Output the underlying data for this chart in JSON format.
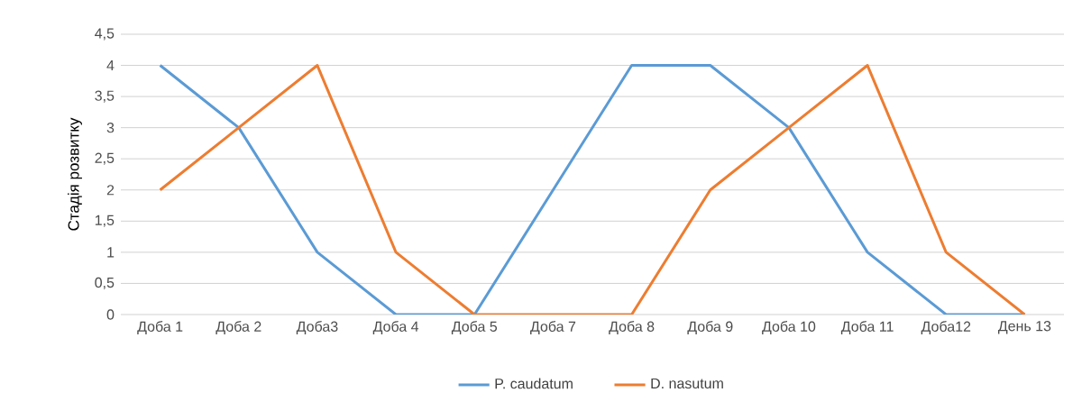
{
  "chart_data": {
    "type": "line",
    "ylabel": "Стадія розвитку",
    "categories": [
      "Доба 1",
      "Доба 2",
      "Доба3",
      "Доба 4",
      "Доба 5",
      "Доба 7",
      "Доба 8",
      "Доба 9",
      "Доба 10",
      "Доба 11",
      "Доба12",
      "День 13"
    ],
    "series": [
      {
        "name": "P. caudatum",
        "color": "#5b9bd5",
        "values": [
          4,
          3,
          1,
          0,
          0,
          2,
          4,
          4,
          3,
          1,
          0,
          0
        ]
      },
      {
        "name": "D. nasutum",
        "color": "#ed7d31",
        "values": [
          2,
          3,
          4,
          1,
          0,
          0,
          0,
          2,
          3,
          4,
          1,
          0
        ]
      }
    ],
    "ylim": [
      0,
      4.5
    ],
    "yticks": [
      0,
      {
        "value": 0.5,
        "label": "0,5"
      },
      1,
      {
        "value": 1.5,
        "label": "1,5"
      },
      2,
      {
        "value": 2.5,
        "label": "2,5"
      },
      3,
      {
        "value": 3.5,
        "label": "3,5"
      },
      4,
      {
        "value": 4.5,
        "label": "4,5"
      }
    ],
    "grid": "y",
    "legend": "bottom",
    "marker": "none",
    "line_style": "solid"
  }
}
